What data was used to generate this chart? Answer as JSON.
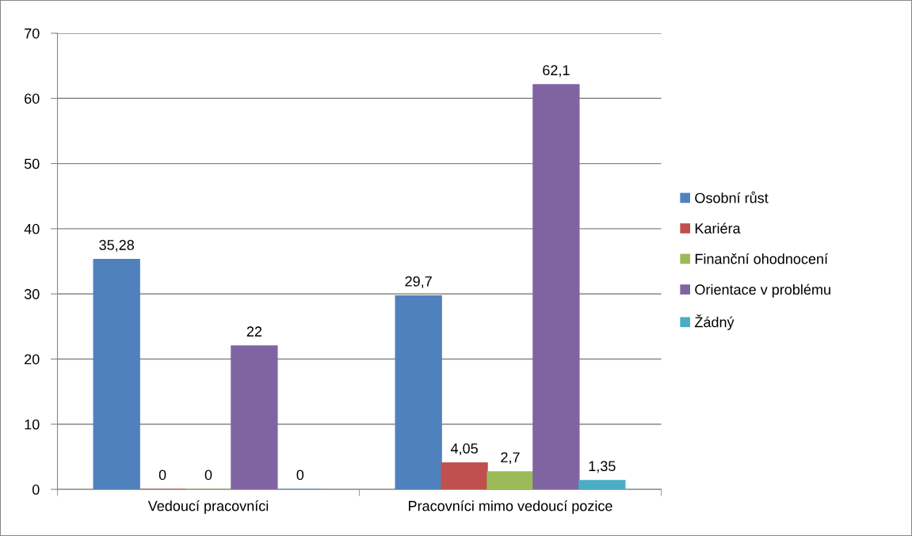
{
  "chart_data": {
    "type": "bar",
    "categories": [
      "Vedoucí pracovníci",
      "Pracovníci mimo vedoucí pozice"
    ],
    "series": [
      {
        "name": "Osobní růst",
        "color": "#4f81bd",
        "values": [
          35.28,
          29.7
        ],
        "value_labels": [
          "35,28",
          "29,7"
        ]
      },
      {
        "name": "Kariéra",
        "color": "#c0504d",
        "values": [
          0,
          4.05
        ],
        "value_labels": [
          "0",
          "4,05"
        ]
      },
      {
        "name": "Finanční ohodnocení",
        "color": "#9bbb59",
        "values": [
          0,
          2.7
        ],
        "value_labels": [
          "0",
          "2,7"
        ]
      },
      {
        "name": "Orientace v problému",
        "color": "#8064a2",
        "values": [
          22,
          62.1
        ],
        "value_labels": [
          "22",
          "62,1"
        ]
      },
      {
        "name": "Žádný",
        "color": "#4bacc6",
        "values": [
          0,
          1.35
        ],
        "value_labels": [
          "0",
          "1,35"
        ]
      }
    ],
    "ylim": [
      0,
      70
    ],
    "yticks": [
      0,
      10,
      20,
      30,
      40,
      50,
      60,
      70
    ],
    "grid": "y",
    "legend": "right"
  }
}
